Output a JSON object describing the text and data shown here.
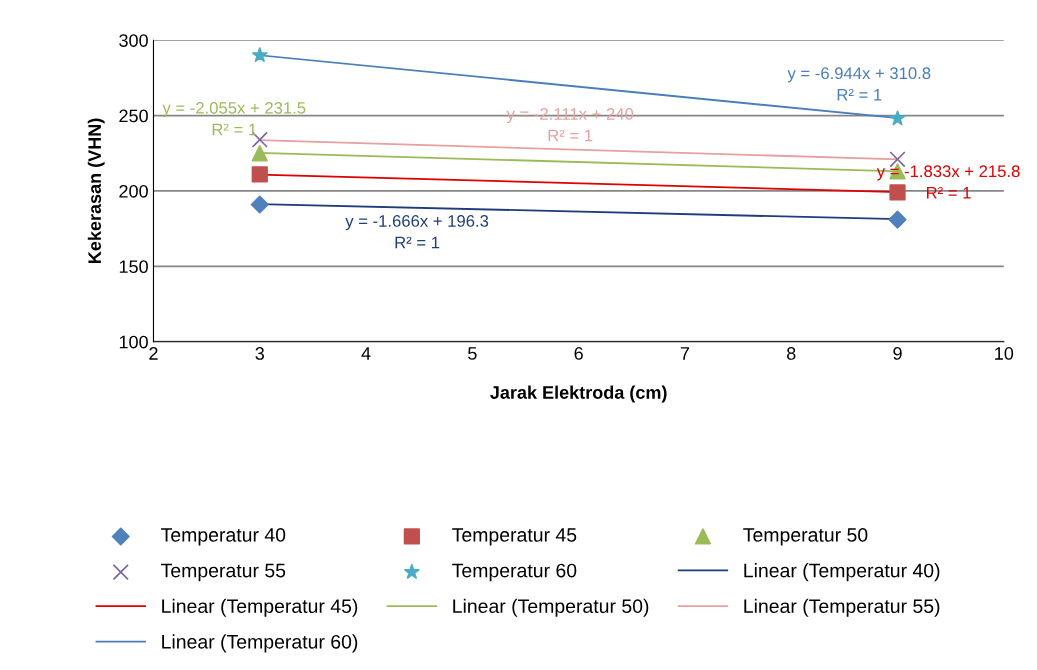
{
  "chart_data": {
    "type": "scatter",
    "xlabel": "Jarak Elektroda (cm)",
    "ylabel": "Kekerasan (VHN)",
    "x": [
      3,
      9
    ],
    "xlim": [
      2,
      10
    ],
    "xticks": [
      2,
      3,
      4,
      5,
      6,
      7,
      8,
      9,
      10
    ],
    "ylim": [
      100,
      300
    ],
    "yticks": [
      100,
      150,
      200,
      250,
      300
    ],
    "grid": "y",
    "legend": "bottom",
    "series": [
      {
        "name": "Temperatur 40",
        "color": "#4f81bd",
        "marker": "diamond",
        "values": [
          191,
          181
        ]
      },
      {
        "name": "Temperatur 45",
        "color": "#c0504d",
        "marker": "square",
        "values": [
          211,
          199
        ]
      },
      {
        "name": "Temperatur 50",
        "color": "#9bbb59",
        "marker": "triangle",
        "values": [
          225,
          213
        ]
      },
      {
        "name": "Temperatur 55",
        "color": "#8064a2",
        "marker": "cross",
        "values": [
          234,
          221
        ]
      },
      {
        "name": "Temperatur 60",
        "color": "#4bacc6",
        "marker": "star",
        "values": [
          290,
          248
        ]
      },
      {
        "name": "Linear (Temperatur 40)",
        "type": "line",
        "color": "#1f3d7a",
        "values": [
          191.3,
          181.3
        ]
      },
      {
        "name": "Linear (Temperatur 45)",
        "type": "line",
        "color": "#e00000",
        "values": [
          210.8,
          199.3
        ]
      },
      {
        "name": "Linear (Temperatur 50)",
        "type": "line",
        "color": "#9bbb59",
        "values": [
          225.3,
          213.0
        ]
      },
      {
        "name": "Linear (Temperatur 55)",
        "type": "line",
        "color": "#e6a0a0",
        "values": [
          233.7,
          221.0
        ]
      },
      {
        "name": "Linear (Temperatur 60)",
        "type": "line",
        "color": "#4a7ebb",
        "values": [
          290.0,
          248.3
        ]
      }
    ],
    "annotations": [
      "y = -1.666x + 196.3\nR² = 1",
      "y = -1.833x + 215.8\nR² = 1",
      "y = -2.055x + 231.5\nR² = 1",
      "y = -2.111x + 240\nR² = 1",
      "y = -6.944x + 310.8\nR² = 1"
    ]
  }
}
